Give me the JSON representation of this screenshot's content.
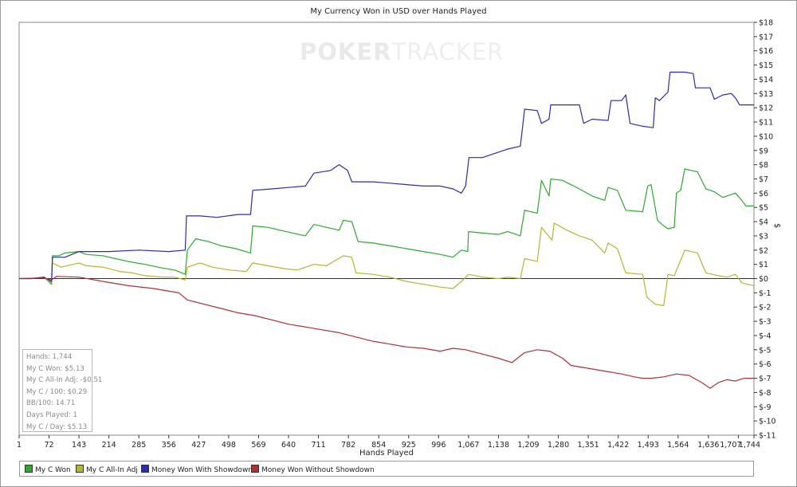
{
  "chart_data": {
    "type": "line",
    "title": "My Currency Won in USD over Hands Played",
    "xlabel": "Hands Played",
    "ylabel": "$",
    "watermark": {
      "bold": "POKER",
      "light": "TRACKER"
    },
    "xlim": [
      1,
      1744
    ],
    "ylim": [
      -11,
      18
    ],
    "x_ticks": [
      "1",
      "72",
      "143",
      "214",
      "285",
      "356",
      "427",
      "498",
      "569",
      "640",
      "711",
      "782",
      "854",
      "925",
      "996",
      "1,067",
      "1,138",
      "1,209",
      "1,280",
      "1,351",
      "1,422",
      "1,493",
      "1,564",
      "1,636",
      "1,707",
      "1,744"
    ],
    "x_tick_values": [
      1,
      72,
      143,
      214,
      285,
      356,
      427,
      498,
      569,
      640,
      711,
      782,
      854,
      925,
      996,
      1067,
      1138,
      1209,
      1280,
      1351,
      1422,
      1493,
      1564,
      1636,
      1707,
      1744
    ],
    "y_ticks": [
      "$18",
      "$17",
      "$16",
      "$15",
      "$14",
      "$13",
      "$12",
      "$11",
      "$10",
      "$9",
      "$8",
      "$7",
      "$6",
      "$5",
      "$4",
      "$3",
      "$2",
      "$1",
      "$0",
      "$-1",
      "$-2",
      "$-3",
      "$-4",
      "$-5",
      "$-6",
      "$-7",
      "$-8",
      "$-9",
      "$-10",
      "$-11"
    ],
    "y_tick_values": [
      18,
      17,
      16,
      15,
      14,
      13,
      12,
      11,
      10,
      9,
      8,
      7,
      6,
      5,
      4,
      3,
      2,
      1,
      0,
      -1,
      -2,
      -3,
      -4,
      -5,
      -6,
      -7,
      -8,
      -9,
      -10,
      -11
    ],
    "series": [
      {
        "name": "My C Won",
        "color": "#2fa82f",
        "points": [
          [
            1,
            0
          ],
          [
            30,
            0
          ],
          [
            60,
            0.1
          ],
          [
            78,
            -0.4
          ],
          [
            80,
            1.6
          ],
          [
            95,
            1.6
          ],
          [
            110,
            1.8
          ],
          [
            143,
            1.9
          ],
          [
            160,
            1.7
          ],
          [
            200,
            1.6
          ],
          [
            230,
            1.4
          ],
          [
            260,
            1.2
          ],
          [
            300,
            1.0
          ],
          [
            330,
            0.8
          ],
          [
            370,
            0.6
          ],
          [
            395,
            0.3
          ],
          [
            400,
            2.0
          ],
          [
            420,
            2.8
          ],
          [
            450,
            2.6
          ],
          [
            480,
            2.3
          ],
          [
            515,
            2.1
          ],
          [
            550,
            1.8
          ],
          [
            555,
            3.7
          ],
          [
            590,
            3.6
          ],
          [
            620,
            3.4
          ],
          [
            650,
            3.2
          ],
          [
            680,
            3.0
          ],
          [
            700,
            3.8
          ],
          [
            730,
            3.6
          ],
          [
            760,
            3.4
          ],
          [
            770,
            4.1
          ],
          [
            790,
            4.0
          ],
          [
            805,
            2.6
          ],
          [
            840,
            2.5
          ],
          [
            880,
            2.3
          ],
          [
            920,
            2.1
          ],
          [
            960,
            1.9
          ],
          [
            1000,
            1.7
          ],
          [
            1030,
            1.5
          ],
          [
            1050,
            2.0
          ],
          [
            1065,
            1.9
          ],
          [
            1067,
            3.3
          ],
          [
            1100,
            3.2
          ],
          [
            1138,
            3.1
          ],
          [
            1160,
            3.3
          ],
          [
            1190,
            3.0
          ],
          [
            1200,
            4.8
          ],
          [
            1230,
            4.6
          ],
          [
            1240,
            6.9
          ],
          [
            1258,
            5.8
          ],
          [
            1262,
            7.0
          ],
          [
            1290,
            6.9
          ],
          [
            1330,
            6.3
          ],
          [
            1360,
            5.8
          ],
          [
            1390,
            5.5
          ],
          [
            1398,
            6.4
          ],
          [
            1420,
            6.2
          ],
          [
            1440,
            4.8
          ],
          [
            1480,
            4.7
          ],
          [
            1492,
            6.5
          ],
          [
            1500,
            6.6
          ],
          [
            1515,
            4.1
          ],
          [
            1530,
            3.7
          ],
          [
            1540,
            3.5
          ],
          [
            1555,
            3.6
          ],
          [
            1560,
            6.0
          ],
          [
            1570,
            6.2
          ],
          [
            1580,
            7.7
          ],
          [
            1610,
            7.5
          ],
          [
            1630,
            6.3
          ],
          [
            1650,
            6.1
          ],
          [
            1670,
            5.7
          ],
          [
            1700,
            6.0
          ],
          [
            1715,
            5.5
          ],
          [
            1725,
            5.1
          ],
          [
            1744,
            5.1
          ]
        ]
      },
      {
        "name": "My C All-In Adj",
        "color": "#b5b534",
        "points": [
          [
            1,
            0
          ],
          [
            30,
            0
          ],
          [
            60,
            0.1
          ],
          [
            78,
            -0.3
          ],
          [
            80,
            1.1
          ],
          [
            100,
            0.8
          ],
          [
            143,
            1.1
          ],
          [
            160,
            0.9
          ],
          [
            200,
            0.8
          ],
          [
            240,
            0.5
          ],
          [
            270,
            0.4
          ],
          [
            300,
            0.2
          ],
          [
            340,
            0.1
          ],
          [
            370,
            0.1
          ],
          [
            395,
            -0.1
          ],
          [
            400,
            0.8
          ],
          [
            430,
            1.1
          ],
          [
            460,
            0.8
          ],
          [
            500,
            0.6
          ],
          [
            540,
            0.5
          ],
          [
            555,
            1.1
          ],
          [
            590,
            0.9
          ],
          [
            630,
            0.7
          ],
          [
            660,
            0.6
          ],
          [
            700,
            1.0
          ],
          [
            730,
            0.9
          ],
          [
            770,
            1.6
          ],
          [
            790,
            1.5
          ],
          [
            800,
            0.4
          ],
          [
            840,
            0.3
          ],
          [
            880,
            0.1
          ],
          [
            920,
            -0.2
          ],
          [
            960,
            -0.4
          ],
          [
            1000,
            -0.6
          ],
          [
            1030,
            -0.7
          ],
          [
            1050,
            -0.2
          ],
          [
            1067,
            0.3
          ],
          [
            1100,
            0.1
          ],
          [
            1138,
            0
          ],
          [
            1160,
            0.1
          ],
          [
            1190,
            0
          ],
          [
            1200,
            1.4
          ],
          [
            1230,
            1.2
          ],
          [
            1240,
            3.6
          ],
          [
            1265,
            2.7
          ],
          [
            1270,
            3.9
          ],
          [
            1300,
            3.4
          ],
          [
            1330,
            3.0
          ],
          [
            1360,
            2.7
          ],
          [
            1390,
            1.8
          ],
          [
            1398,
            2.5
          ],
          [
            1420,
            2.1
          ],
          [
            1440,
            0.4
          ],
          [
            1480,
            0.3
          ],
          [
            1490,
            -1.3
          ],
          [
            1510,
            -1.8
          ],
          [
            1530,
            -1.9
          ],
          [
            1540,
            0.3
          ],
          [
            1555,
            0.2
          ],
          [
            1580,
            2.0
          ],
          [
            1610,
            1.8
          ],
          [
            1630,
            0.4
          ],
          [
            1660,
            0.2
          ],
          [
            1680,
            0.1
          ],
          [
            1700,
            0.3
          ],
          [
            1715,
            -0.3
          ],
          [
            1744,
            -0.5
          ]
        ]
      },
      {
        "name": "Money Won With Showdown",
        "color": "#2b2bb0",
        "points": [
          [
            1,
            0
          ],
          [
            30,
            0
          ],
          [
            60,
            0.1
          ],
          [
            78,
            -0.2
          ],
          [
            80,
            1.5
          ],
          [
            110,
            1.5
          ],
          [
            143,
            1.9
          ],
          [
            214,
            1.9
          ],
          [
            285,
            2.0
          ],
          [
            356,
            1.9
          ],
          [
            395,
            2.0
          ],
          [
            398,
            4.4
          ],
          [
            430,
            4.4
          ],
          [
            470,
            4.3
          ],
          [
            520,
            4.5
          ],
          [
            550,
            4.5
          ],
          [
            555,
            6.2
          ],
          [
            600,
            6.3
          ],
          [
            640,
            6.4
          ],
          [
            680,
            6.5
          ],
          [
            700,
            7.4
          ],
          [
            740,
            7.6
          ],
          [
            760,
            8.0
          ],
          [
            780,
            7.6
          ],
          [
            790,
            6.8
          ],
          [
            840,
            6.8
          ],
          [
            880,
            6.7
          ],
          [
            920,
            6.6
          ],
          [
            960,
            6.5
          ],
          [
            1000,
            6.5
          ],
          [
            1030,
            6.3
          ],
          [
            1050,
            6.0
          ],
          [
            1060,
            6.5
          ],
          [
            1068,
            8.5
          ],
          [
            1100,
            8.5
          ],
          [
            1130,
            8.8
          ],
          [
            1160,
            9.1
          ],
          [
            1190,
            9.3
          ],
          [
            1200,
            11.9
          ],
          [
            1230,
            11.8
          ],
          [
            1240,
            10.9
          ],
          [
            1258,
            11.2
          ],
          [
            1262,
            12.2
          ],
          [
            1300,
            12.2
          ],
          [
            1330,
            12.2
          ],
          [
            1340,
            10.9
          ],
          [
            1360,
            11.2
          ],
          [
            1398,
            11.1
          ],
          [
            1405,
            12.5
          ],
          [
            1430,
            12.5
          ],
          [
            1440,
            12.9
          ],
          [
            1450,
            10.9
          ],
          [
            1480,
            10.7
          ],
          [
            1505,
            10.6
          ],
          [
            1510,
            12.7
          ],
          [
            1520,
            12.5
          ],
          [
            1540,
            13.1
          ],
          [
            1545,
            14.5
          ],
          [
            1580,
            14.5
          ],
          [
            1600,
            14.4
          ],
          [
            1605,
            13.4
          ],
          [
            1640,
            13.4
          ],
          [
            1650,
            12.6
          ],
          [
            1670,
            12.9
          ],
          [
            1690,
            13.0
          ],
          [
            1700,
            12.7
          ],
          [
            1710,
            12.2
          ],
          [
            1744,
            12.2
          ]
        ]
      },
      {
        "name": "Money Won Without Showdown",
        "color": "#b03030",
        "points": [
          [
            1,
            0
          ],
          [
            60,
            0.05
          ],
          [
            78,
            -0.1
          ],
          [
            90,
            0.15
          ],
          [
            143,
            0.1
          ],
          [
            200,
            -0.2
          ],
          [
            260,
            -0.5
          ],
          [
            320,
            -0.7
          ],
          [
            380,
            -1.0
          ],
          [
            400,
            -1.5
          ],
          [
            440,
            -1.8
          ],
          [
            480,
            -2.1
          ],
          [
            520,
            -2.4
          ],
          [
            560,
            -2.6
          ],
          [
            600,
            -2.9
          ],
          [
            640,
            -3.2
          ],
          [
            680,
            -3.4
          ],
          [
            720,
            -3.6
          ],
          [
            760,
            -3.8
          ],
          [
            800,
            -4.1
          ],
          [
            840,
            -4.4
          ],
          [
            880,
            -4.6
          ],
          [
            920,
            -4.8
          ],
          [
            960,
            -4.9
          ],
          [
            1000,
            -5.1
          ],
          [
            1030,
            -4.9
          ],
          [
            1060,
            -5.0
          ],
          [
            1100,
            -5.3
          ],
          [
            1138,
            -5.6
          ],
          [
            1170,
            -5.9
          ],
          [
            1200,
            -5.2
          ],
          [
            1230,
            -5.0
          ],
          [
            1260,
            -5.1
          ],
          [
            1290,
            -5.6
          ],
          [
            1310,
            -6.1
          ],
          [
            1350,
            -6.3
          ],
          [
            1390,
            -6.5
          ],
          [
            1430,
            -6.7
          ],
          [
            1460,
            -6.9
          ],
          [
            1480,
            -7.0
          ],
          [
            1500,
            -7.0
          ],
          [
            1530,
            -6.9
          ],
          [
            1560,
            -6.7
          ],
          [
            1590,
            -6.8
          ],
          [
            1620,
            -7.3
          ],
          [
            1640,
            -7.7
          ],
          [
            1660,
            -7.3
          ],
          [
            1680,
            -7.1
          ],
          [
            1700,
            -7.2
          ],
          [
            1720,
            -7.0
          ],
          [
            1744,
            -7.0
          ]
        ]
      }
    ],
    "stats": [
      "Hands: 1,744",
      "My C Won: $5.13",
      "My C All-In Adj: -$0.51",
      "My C / 100: $0.29",
      "BB/100: 14.71",
      "Days Played: 1",
      "My C / Day: $5.13"
    ],
    "legend_position": "bottom",
    "grid": false
  }
}
